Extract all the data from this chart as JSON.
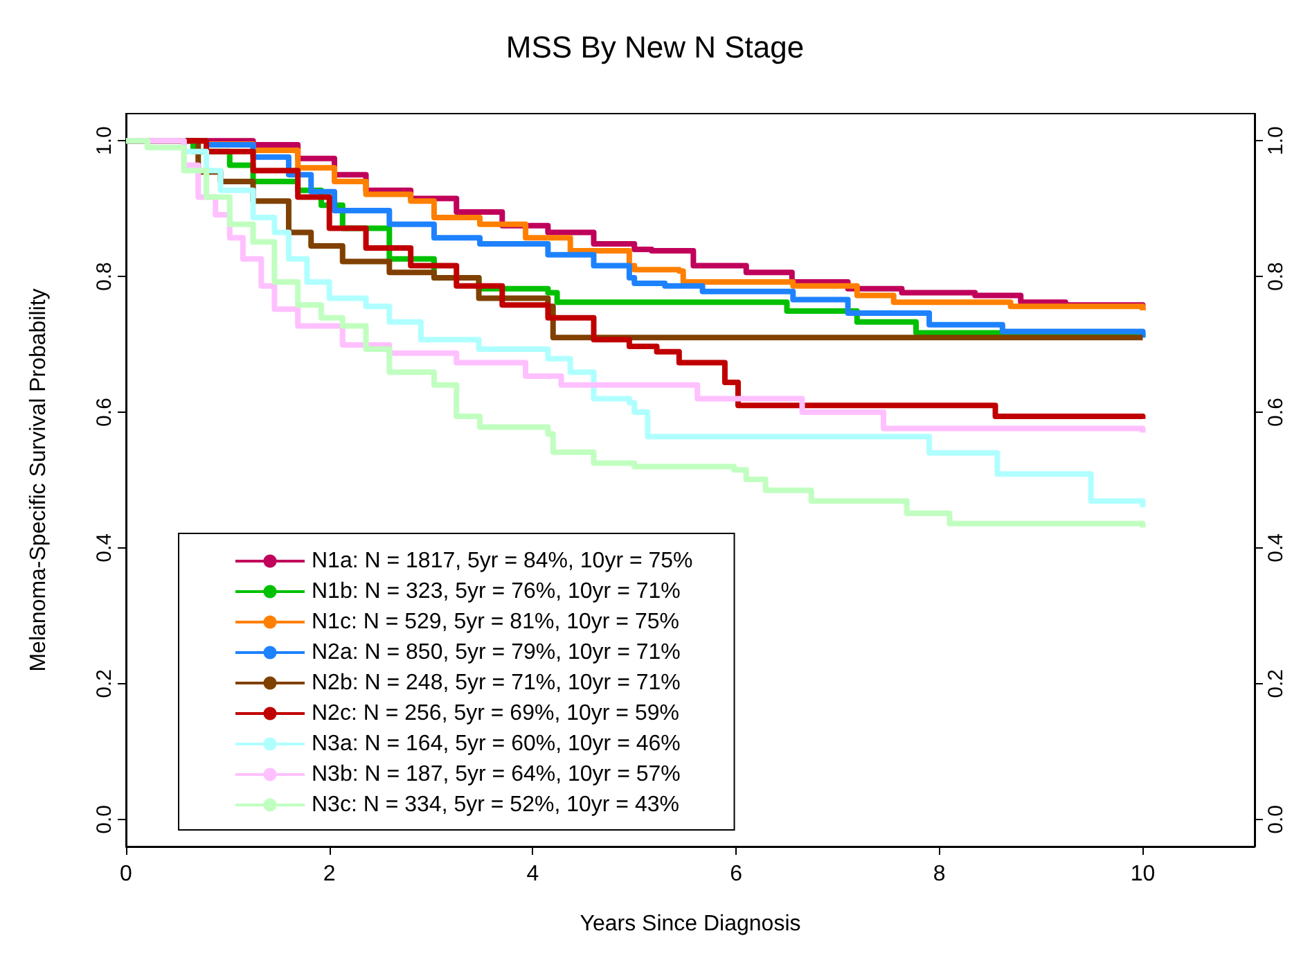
{
  "chart_data": {
    "type": "step",
    "title": "MSS By New N Stage",
    "xlabel": "Years Since Diagnosis",
    "ylabel": "Melanoma-Specific Survival Probability",
    "xlim": [
      0,
      11.1
    ],
    "xticks": [
      0,
      2,
      4,
      6,
      8,
      10
    ],
    "ylim": [
      -0.04,
      1.04
    ],
    "yticks": [
      {
        "value": 0,
        "label": "0.0"
      },
      {
        "value": 0.2,
        "label": "0.2"
      },
      {
        "value": 0.4,
        "label": "0.4"
      },
      {
        "value": 0.6,
        "label": "0.6"
      },
      {
        "value": 0.8,
        "label": "0.8"
      },
      {
        "value": 1,
        "label": "1.0"
      }
    ],
    "y2lim": [
      -0.04,
      1.04
    ],
    "y2ticks": [
      {
        "value": 0,
        "label": "0.0"
      },
      {
        "value": 0.2,
        "label": "0.2"
      },
      {
        "value": 0.4,
        "label": "0.4"
      },
      {
        "value": 0.6,
        "label": "0.6"
      },
      {
        "value": 0.8,
        "label": "0.8"
      },
      {
        "value": 1,
        "label": "1.0"
      }
    ],
    "grid": false,
    "legend": "bottom left",
    "line_style": "solid",
    "series": [
      {
        "name": "N1a: N = 1817, 5yr = 84%, 10yr = 75%",
        "color": "#c0005a",
        "x": [
          0,
          1.25,
          1.69,
          2.05,
          2.36,
          2.8,
          3.25,
          3.7,
          4.15,
          4.6,
          5,
          5.17,
          5.58,
          6.1,
          6.55,
          7.1,
          7.63,
          8.35,
          8.8,
          9.24,
          10
        ],
        "values": [
          1,
          0.994,
          0.974,
          0.95,
          0.927,
          0.915,
          0.895,
          0.875,
          0.865,
          0.848,
          0.84,
          0.838,
          0.816,
          0.806,
          0.792,
          0.782,
          0.776,
          0.772,
          0.762,
          0.758,
          0.75
        ]
      },
      {
        "name": "N1b: N = 323, 5yr = 76%, 10yr = 71%",
        "color": "#00c000",
        "x": [
          0,
          0.66,
          1.02,
          1.25,
          1.69,
          1.92,
          2.13,
          2.59,
          3.03,
          3.47,
          4.15,
          4.24,
          5,
          6.47,
          6.5,
          7.19,
          7.77,
          10
        ],
        "values": [
          1,
          0.984,
          0.964,
          0.94,
          0.927,
          0.905,
          0.871,
          0.826,
          0.798,
          0.782,
          0.776,
          0.762,
          0.762,
          0.762,
          0.749,
          0.733,
          0.717,
          0.71
        ]
      },
      {
        "name": "N1c: N = 529, 5yr = 81%, 10yr = 75%",
        "color": "#ff8000",
        "x": [
          0,
          0.79,
          1.25,
          1.69,
          2.05,
          2.36,
          2.8,
          3.03,
          3.48,
          3.93,
          4.37,
          4.95,
          5,
          5.44,
          5.48,
          6.56,
          7.19,
          7.55,
          8.7,
          10
        ],
        "values": [
          1,
          0.995,
          0.986,
          0.96,
          0.94,
          0.921,
          0.911,
          0.887,
          0.877,
          0.857,
          0.838,
          0.816,
          0.81,
          0.808,
          0.792,
          0.786,
          0.772,
          0.762,
          0.756,
          0.75
        ]
      },
      {
        "name": "N2a: N = 850, 5yr = 79%, 10yr = 71%",
        "color": "#1e82ff",
        "x": [
          0,
          0.79,
          1.25,
          1.6,
          1.82,
          2.05,
          2.59,
          3.03,
          3.48,
          4.15,
          4.6,
          4.95,
          5,
          5.3,
          5.67,
          6.56,
          7.1,
          7.9,
          8.62,
          10
        ],
        "values": [
          1,
          0.994,
          0.976,
          0.95,
          0.925,
          0.897,
          0.877,
          0.857,
          0.848,
          0.832,
          0.816,
          0.798,
          0.79,
          0.786,
          0.778,
          0.766,
          0.746,
          0.729,
          0.719,
          0.71
        ]
      },
      {
        "name": "N2b: N = 248, 5yr = 71%, 10yr = 71%",
        "color": "#804000",
        "x": [
          0,
          0.71,
          0.93,
          1.25,
          1.6,
          1.82,
          2.13,
          2.59,
          3.03,
          3.47,
          4.15,
          4.2,
          5,
          10
        ],
        "values": [
          1,
          0.954,
          0.94,
          0.911,
          0.865,
          0.845,
          0.822,
          0.806,
          0.798,
          0.768,
          0.756,
          0.71,
          0.71,
          0.71
        ]
      },
      {
        "name": "N2c: N = 256, 5yr = 69%, 10yr = 59%",
        "color": "#c00000",
        "x": [
          0,
          0.79,
          1.25,
          1.69,
          2,
          2.36,
          2.8,
          3.25,
          3.7,
          4.15,
          4.6,
          4.95,
          5.22,
          5.44,
          5.89,
          6.02,
          8.55,
          10
        ],
        "values": [
          1,
          0.984,
          0.956,
          0.917,
          0.871,
          0.842,
          0.816,
          0.786,
          0.758,
          0.739,
          0.707,
          0.697,
          0.689,
          0.673,
          0.644,
          0.61,
          0.594,
          0.59
        ]
      },
      {
        "name": "N3a: N = 164, 5yr = 60%, 10yr = 46%",
        "color": "#b0ffff",
        "x": [
          0,
          0.57,
          0.79,
          0.93,
          1.25,
          1.46,
          1.6,
          1.78,
          2,
          2.36,
          2.59,
          2.9,
          3.47,
          4.15,
          4.37,
          4.6,
          4.95,
          5,
          5.13,
          7.9,
          8.57,
          9.49,
          10
        ],
        "values": [
          1,
          0.984,
          0.956,
          0.927,
          0.887,
          0.865,
          0.826,
          0.792,
          0.768,
          0.756,
          0.733,
          0.707,
          0.693,
          0.679,
          0.659,
          0.62,
          0.614,
          0.6,
          0.564,
          0.54,
          0.509,
          0.469,
          0.46
        ]
      },
      {
        "name": "N3b: N = 187, 5yr = 64%, 10yr = 57%",
        "color": "#ffc0ff",
        "x": [
          0,
          0.57,
          0.71,
          0.88,
          1.02,
          1.15,
          1.33,
          1.46,
          1.69,
          2.13,
          2.59,
          3.25,
          3.93,
          4.28,
          5,
          5.62,
          6.65,
          7.45,
          10
        ],
        "values": [
          1,
          0.964,
          0.917,
          0.891,
          0.857,
          0.826,
          0.786,
          0.752,
          0.727,
          0.699,
          0.687,
          0.673,
          0.653,
          0.64,
          0.64,
          0.62,
          0.6,
          0.576,
          0.57
        ]
      },
      {
        "name": "N3c: N = 334, 5yr = 52%, 10yr = 43%",
        "color": "#c0ffc0",
        "x": [
          0,
          0.21,
          0.57,
          0.79,
          1.02,
          1.25,
          1.46,
          1.69,
          1.92,
          2.13,
          2.36,
          2.59,
          3.03,
          3.25,
          3.48,
          4.15,
          4.2,
          4.6,
          5,
          5.98,
          6.1,
          6.29,
          6.74,
          7.68,
          8.1,
          10
        ],
        "values": [
          1,
          0.99,
          0.956,
          0.917,
          0.877,
          0.851,
          0.792,
          0.758,
          0.739,
          0.727,
          0.693,
          0.659,
          0.64,
          0.594,
          0.578,
          0.568,
          0.541,
          0.525,
          0.52,
          0.515,
          0.501,
          0.485,
          0.469,
          0.451,
          0.436,
          0.43
        ]
      }
    ]
  }
}
